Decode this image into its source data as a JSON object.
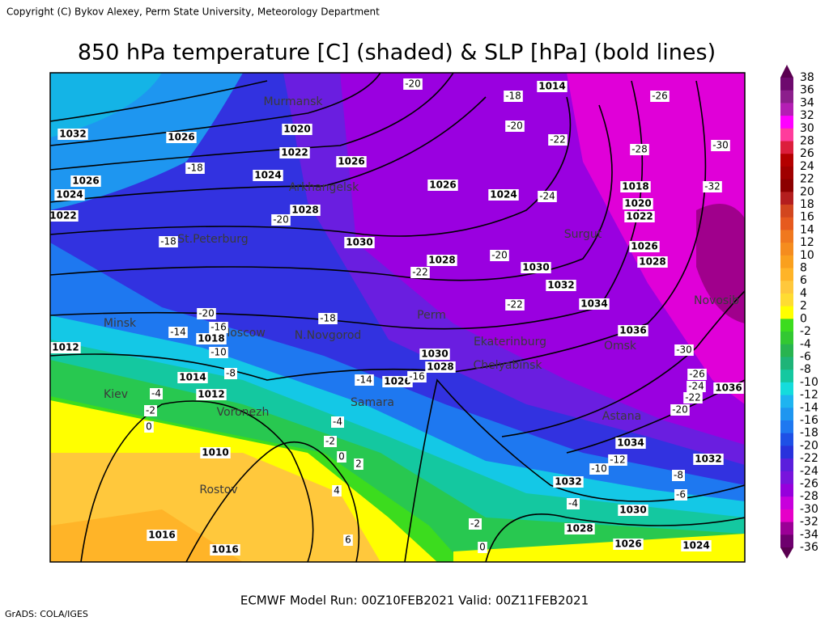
{
  "copyright": "Copyright (C) Bykov Alexey, Perm State University, Meteorology Department",
  "title": "850 hPa temperature [C] (shaded) & SLP [hPa] (bold lines)",
  "footer": "ECMWF Model Run: 00Z10FEB2021 Valid: 00Z11FEB2021",
  "credit": "GrADS: COLA/IGES",
  "colorbar": {
    "labels": [
      "38",
      "36",
      "34",
      "32",
      "30",
      "28",
      "26",
      "24",
      "22",
      "20",
      "18",
      "16",
      "14",
      "12",
      "10",
      "8",
      "6",
      "4",
      "2",
      "0",
      "-2",
      "-4",
      "-6",
      "-8",
      "-10",
      "-12",
      "-14",
      "-16",
      "-18",
      "-20",
      "-22",
      "-24",
      "-26",
      "-28",
      "-30",
      "-32",
      "-34",
      "-36"
    ]
  },
  "cities": [
    "Murmansk",
    "Arkhangelsk",
    "St.Peterburg",
    "Minsk",
    "Moscow",
    "N.Novgorod",
    "Perm",
    "Kiev",
    "Voronezh",
    "Samara",
    "Rostov",
    "Ekaterinburg",
    "Chelyabinsk",
    "Surgut",
    "Omsk",
    "Novosib",
    "Astana"
  ],
  "isobar_labels": [
    "1032",
    "1026",
    "1020",
    "1022",
    "1026",
    "1024",
    "1028",
    "1030",
    "1028",
    "1026",
    "1024",
    "1014",
    "1018",
    "1020",
    "1022",
    "1026",
    "1028",
    "1030",
    "1032",
    "1034",
    "1036",
    "1030",
    "1028",
    "1026",
    "1014",
    "1012",
    "1018",
    "1012",
    "1010",
    "1016",
    "1016",
    "1036",
    "1034",
    "1032",
    "1032",
    "1030",
    "1028",
    "1026",
    "1024",
    "1026",
    "1024",
    "1022"
  ],
  "temperature_labels": [
    "-20",
    "-18",
    "-26",
    "-20",
    "-22",
    "-28",
    "-30",
    "-32",
    "-24",
    "-18",
    "-20",
    "-18",
    "-22",
    "-20",
    "-22",
    "-18",
    "-14",
    "-16",
    "-30",
    "-26",
    "-24",
    "-22",
    "-20",
    "-10",
    "-12",
    "-8",
    "-6",
    "-4",
    "-2",
    "0",
    "2",
    "4",
    "6",
    "-4",
    "-2",
    "0",
    "-4",
    "-2",
    "0",
    "-14",
    "-10",
    "-8",
    "-16",
    "-20"
  ]
}
